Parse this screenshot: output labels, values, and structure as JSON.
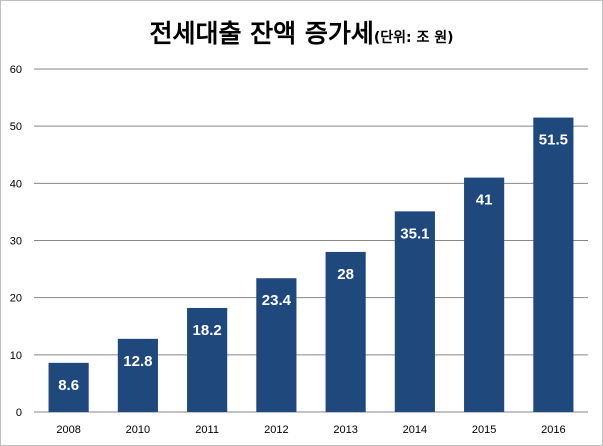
{
  "chart_data": {
    "type": "bar",
    "title": "전세대출 잔액 증가세",
    "unit_note": "(단위: 조 원)",
    "categories": [
      "2008",
      "2010",
      "2011",
      "2012",
      "2013",
      "2014",
      "2015",
      "2016"
    ],
    "values": [
      8.6,
      12.8,
      18.2,
      23.4,
      28,
      35.1,
      41,
      51.5
    ],
    "data_labels": [
      "8.6",
      "12.8",
      "18.2",
      "23.4",
      "28",
      "35.1",
      "41",
      "51.5"
    ],
    "xlabel": "",
    "ylabel": "",
    "ylim": [
      0,
      60
    ],
    "yticks": [
      "0",
      "10",
      "20",
      "30",
      "40",
      "50",
      "60"
    ],
    "grid": true,
    "legend": "none",
    "colors": {
      "bar": "#1f497d",
      "grid": "#878787",
      "label": "#ffffff",
      "axis_text": "#000000"
    }
  }
}
